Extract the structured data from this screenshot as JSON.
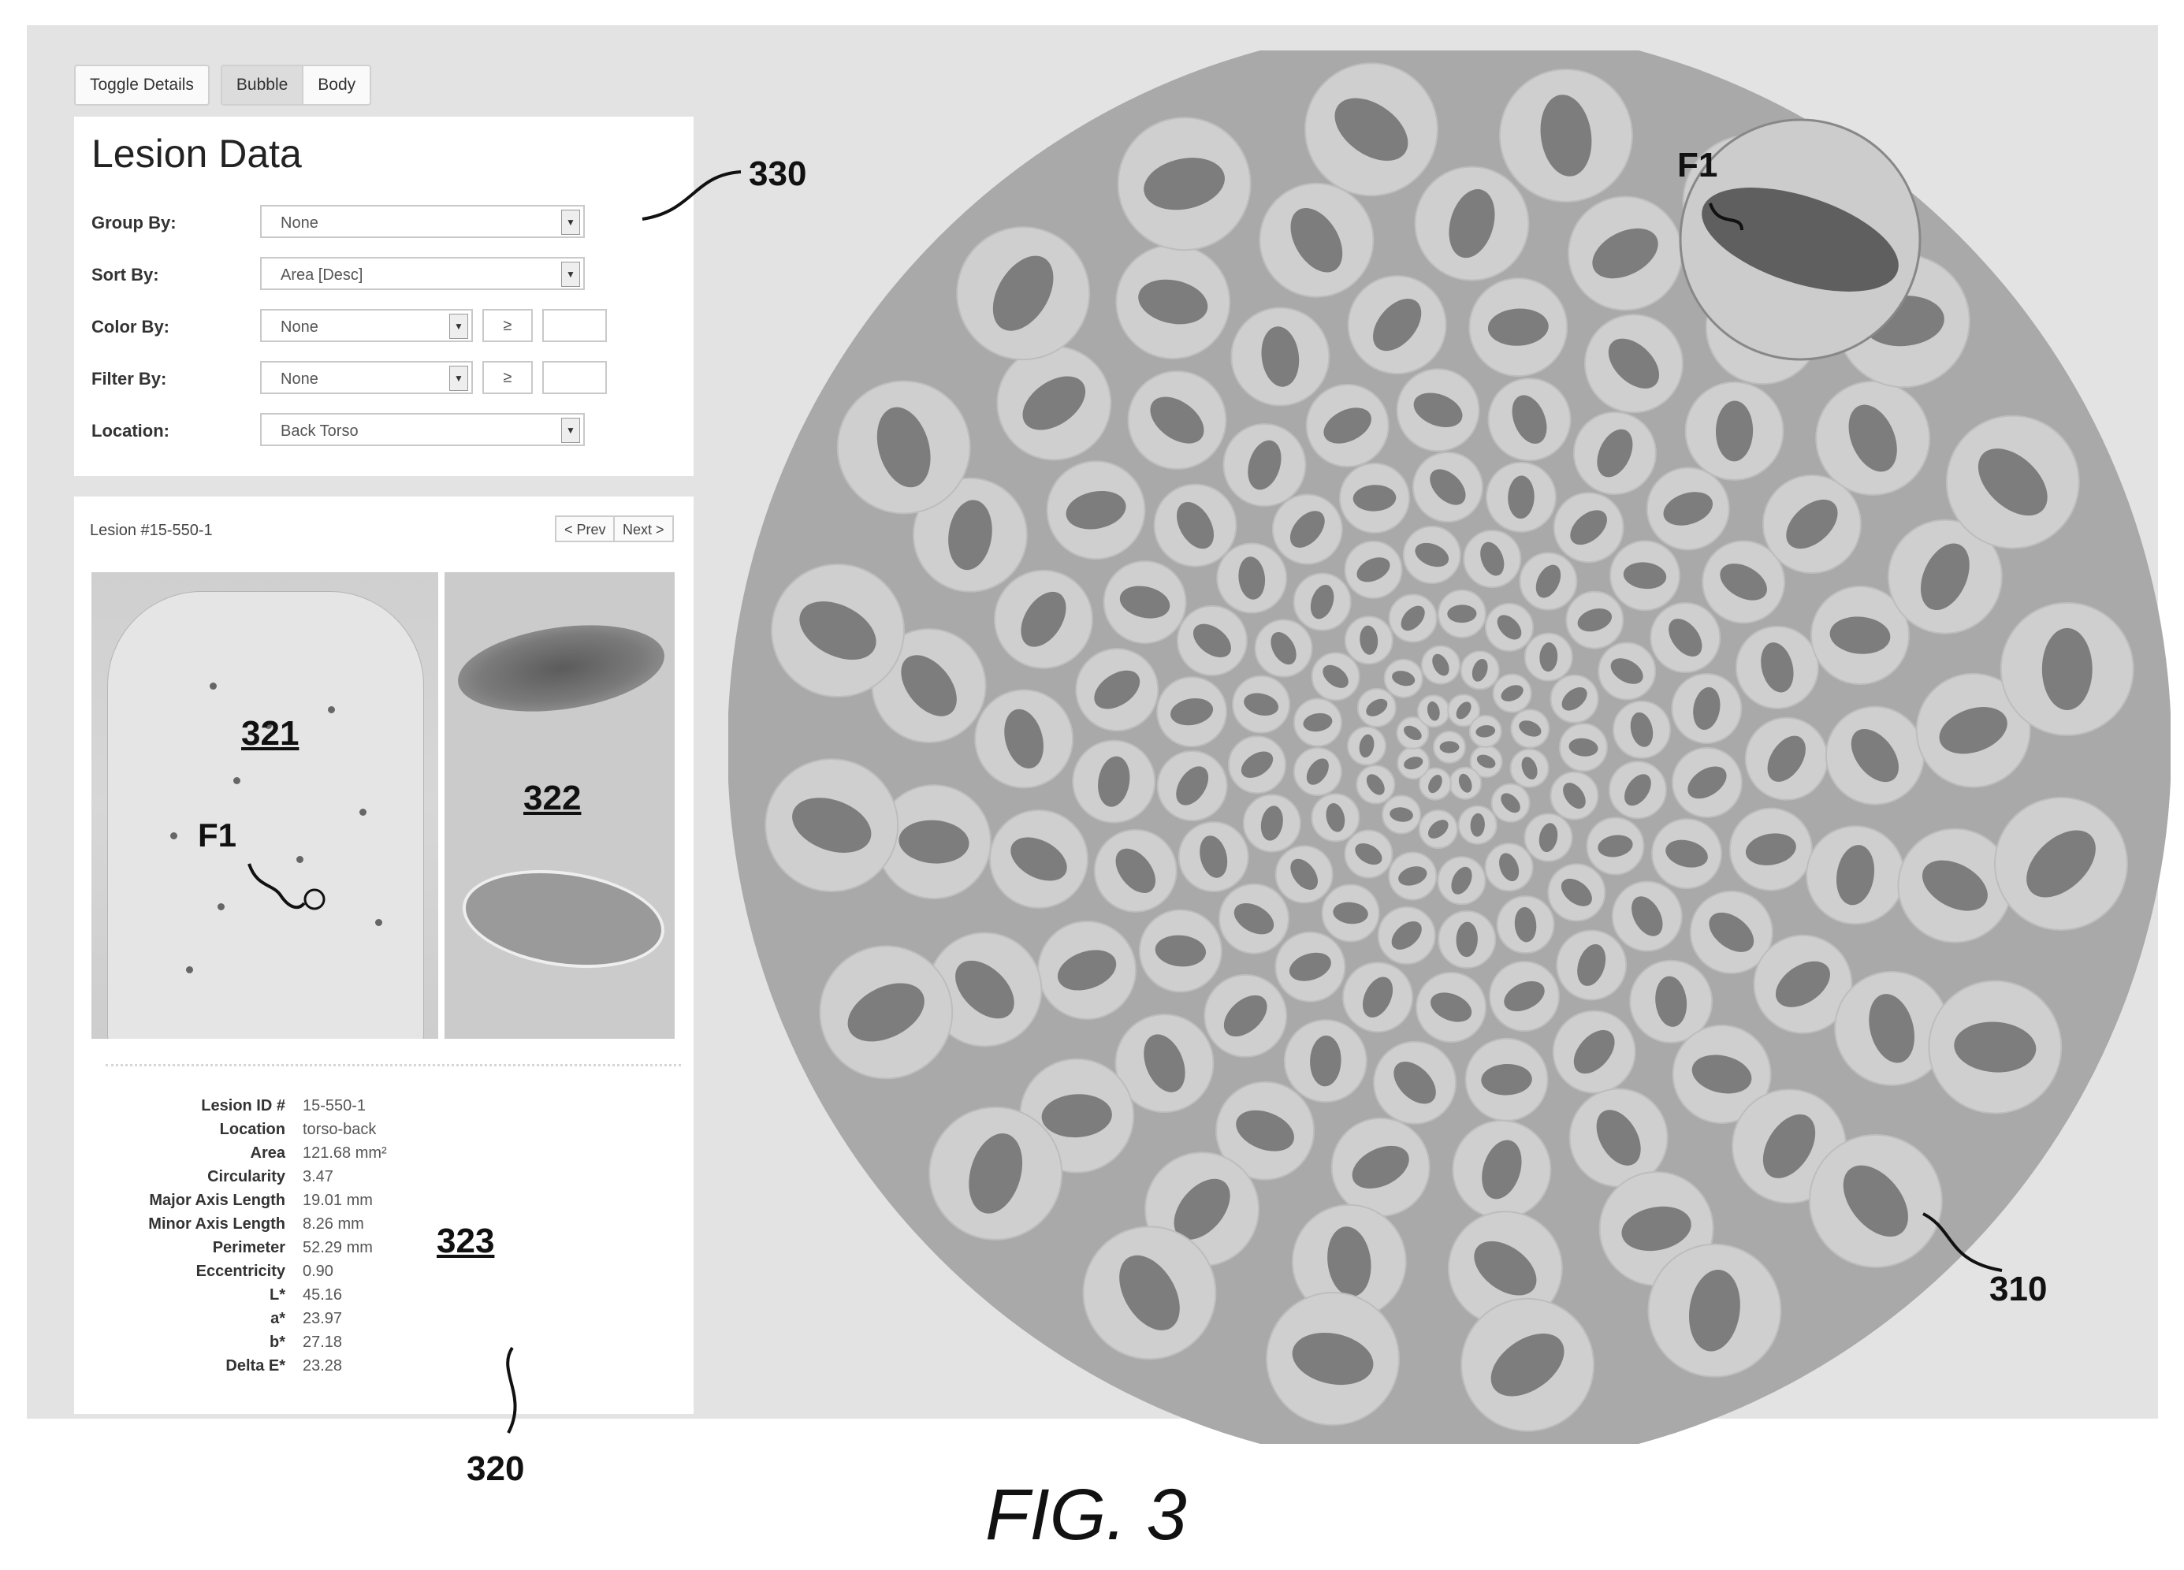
{
  "toolbar": {
    "toggle_details": "Toggle Details",
    "bubble_tab": "Bubble",
    "body_tab": "Body"
  },
  "lesion_data": {
    "title": "Lesion Data",
    "group_by": {
      "label": "Group By:",
      "value": "None"
    },
    "sort_by": {
      "label": "Sort By:",
      "value": "Area [Desc]"
    },
    "color_by": {
      "label": "Color By:",
      "value": "None",
      "operator": "≥"
    },
    "filter_by": {
      "label": "Filter By:",
      "value": "None",
      "operator": "≥"
    },
    "location": {
      "label": "Location:",
      "value": "Back Torso"
    }
  },
  "detail": {
    "title": "Lesion #15-550-1",
    "prev": "Prev",
    "next": "Next",
    "stats": [
      {
        "label": "Lesion ID #",
        "value": "15-550-1"
      },
      {
        "label": "Location",
        "value": "torso-back"
      },
      {
        "label": "Area",
        "value": "121.68 mm²"
      },
      {
        "label": "Circularity",
        "value": "3.47"
      },
      {
        "label": "Major Axis Length",
        "value": "19.01 mm"
      },
      {
        "label": "Minor Axis Length",
        "value": "8.26 mm"
      },
      {
        "label": "Perimeter",
        "value": "52.29 mm"
      },
      {
        "label": "Eccentricity",
        "value": "0.90"
      },
      {
        "label": "L*",
        "value": "45.16"
      },
      {
        "label": "a*",
        "value": "23.97"
      },
      {
        "label": "b*",
        "value": "27.18"
      },
      {
        "label": "Delta E*",
        "value": "23.28"
      }
    ]
  },
  "refs": {
    "r321": "321",
    "r322": "322",
    "r323": "323",
    "r330": "330",
    "r320": "320",
    "r310": "310",
    "f1_photo": "F1",
    "f1_bubble": "F1"
  },
  "figure_label": "FIG. 3",
  "icons": {
    "prev": "chevron-left-icon",
    "next": "chevron-right-icon",
    "dropdown": "chevron-down-icon"
  },
  "colors": {
    "app_background": "#e3e3e3",
    "bubble_disc": "#a9a9a9",
    "bubble": "#cfcfcf",
    "lesion": "#6f6f6f"
  }
}
